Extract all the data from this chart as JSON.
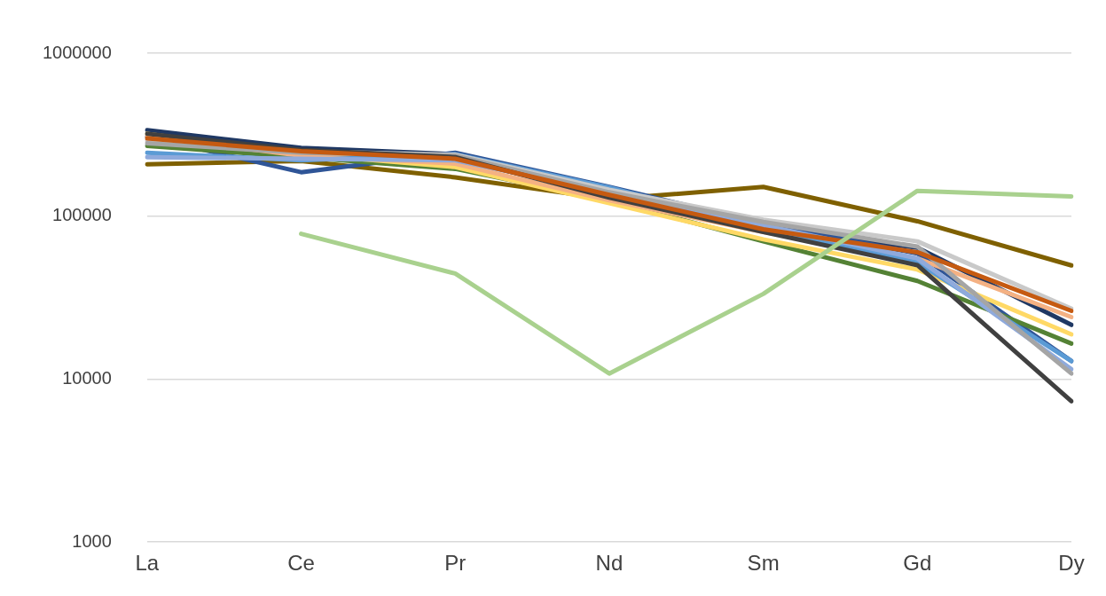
{
  "chart_data": {
    "type": "line",
    "categories": [
      "La",
      "Ce",
      "Pr",
      "Nd",
      "Sm",
      "Gd",
      "Dy"
    ],
    "series": [
      {
        "color": "#a9d18e",
        "values": [
          null,
          77900,
          44400,
          10800,
          33300,
          143000,
          132000
        ]
      },
      {
        "color": "#c55a11",
        "values": [
          300000,
          250000,
          225000,
          135000,
          83000,
          60000,
          26200
        ]
      },
      {
        "color": "#404040",
        "values": [
          320000,
          255000,
          230000,
          130000,
          80000,
          50000,
          7300
        ]
      },
      {
        "color": "#a5a5a5",
        "values": [
          280000,
          245000,
          235000,
          140000,
          92000,
          65000,
          10800
        ]
      },
      {
        "color": "#c9c9c9",
        "values": [
          290000,
          250000,
          238000,
          145000,
          95000,
          70000,
          27000
        ]
      },
      {
        "color": "#8faadc",
        "values": [
          230000,
          225000,
          220000,
          140000,
          88000,
          55000,
          11500
        ]
      },
      {
        "color": "#5b9bd5",
        "values": [
          245000,
          220000,
          240000,
          150000,
          85000,
          52000,
          12900
        ]
      },
      {
        "color": "#f4b183",
        "values": [
          310000,
          235000,
          210000,
          125000,
          80000,
          55000,
          24000
        ]
      },
      {
        "color": "#ffd966",
        "values": [
          320000,
          240000,
          200000,
          120000,
          72000,
          47000,
          18800
        ]
      },
      {
        "color": "#548235",
        "values": [
          270000,
          230000,
          195000,
          125000,
          70000,
          40000,
          16500
        ]
      },
      {
        "color": "#2f5597",
        "values": [
          307000,
          186000,
          245000,
          151000,
          90000,
          59000,
          12900
        ]
      },
      {
        "color": "#1f3864",
        "values": [
          337000,
          262000,
          240000,
          146000,
          85000,
          64000,
          21500
        ]
      },
      {
        "color": "#7f6000",
        "values": [
          208000,
          218000,
          173000,
          127000,
          151000,
          93000,
          49800
        ]
      }
    ],
    "ylim": [
      1000,
      1000000
    ],
    "yticks": [
      1000,
      10000,
      100000,
      1000000
    ],
    "log": true,
    "grid": "y",
    "marker": "none"
  }
}
